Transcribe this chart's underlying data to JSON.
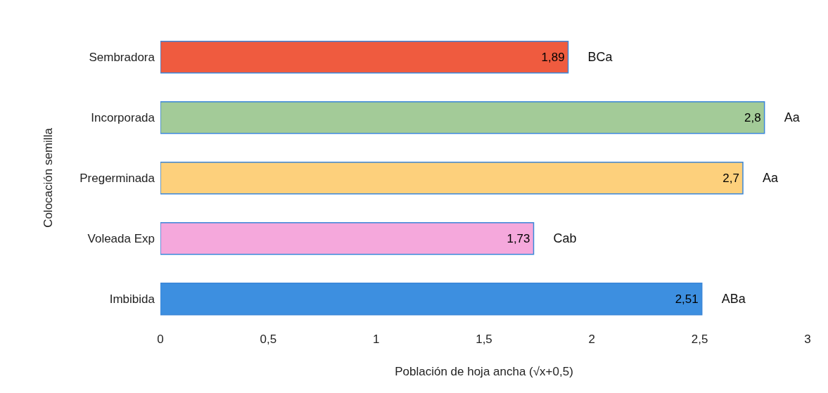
{
  "chart_data": {
    "type": "bar",
    "orientation": "horizontal",
    "xlabel": "Población de hoja ancha (√x+0,5)",
    "ylabel": "Colocación semilla",
    "categories": [
      "Sembradora",
      "Incorporada",
      "Pregerminada",
      "Voleada Exp",
      "Imbibida"
    ],
    "values": [
      1.89,
      2.8,
      2.7,
      1.73,
      2.51
    ],
    "colors": [
      "#ef5b3f",
      "#a3cb98",
      "#fdd07c",
      "#f5a8dc",
      "#3d8fe0"
    ],
    "value_labels": [
      "1,89",
      "2,8",
      "2,7",
      "1,73",
      "2,51"
    ],
    "xlim": [
      0,
      3
    ],
    "xticks": [
      0,
      {
        "value": 0.5,
        "label": "0,5"
      },
      1,
      {
        "value": 1.5,
        "label": "1,5"
      },
      2,
      {
        "value": 2.5,
        "label": "2,5"
      },
      3
    ],
    "grid": false,
    "annotations": [
      {
        "text": "BCa",
        "x": 1.89,
        "y": "Sembradora"
      },
      {
        "text": "Aa",
        "x": 2.8,
        "y": "Incorporada"
      },
      {
        "text": "Aa",
        "x": 2.7,
        "y": "Pregerminada"
      },
      {
        "text": "Cab",
        "x": 1.73,
        "y": "Voleada Exp"
      },
      {
        "text": "ABa",
        "x": 2.51,
        "y": "Imbibida"
      }
    ]
  }
}
